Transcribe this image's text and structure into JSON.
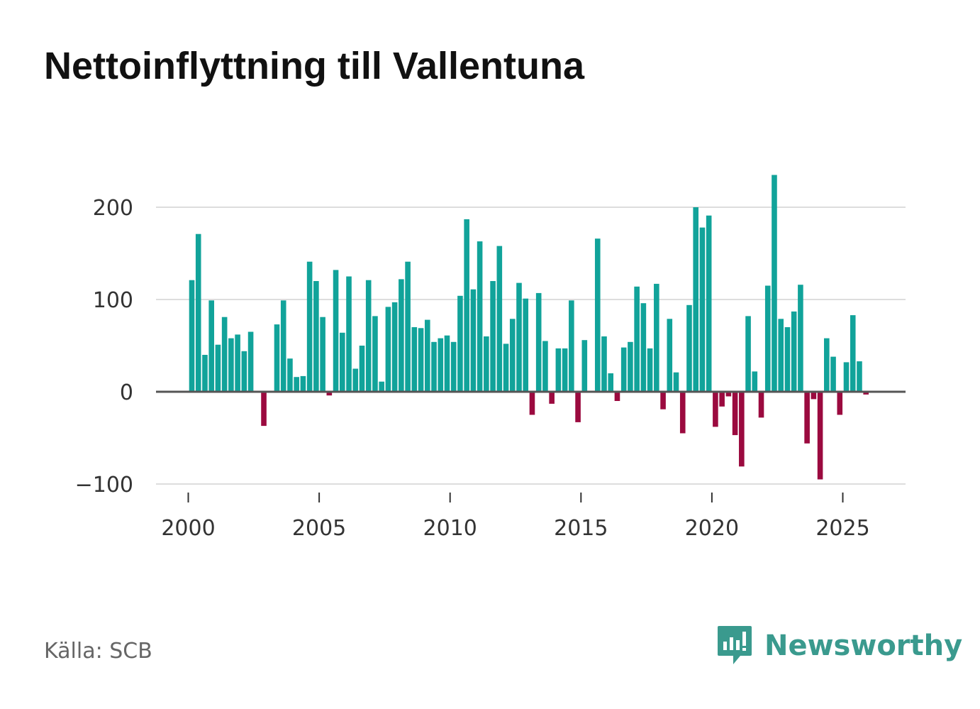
{
  "title": "Nettoinflyttning till Vallentuna",
  "source": "Källa: SCB",
  "brand": {
    "name": "Newsworthy",
    "icon": "newsworthy-logo-icon",
    "color": "#3a9a8e"
  },
  "colors": {
    "positive": "#11a39a",
    "negative": "#9b0a3f",
    "grid": "#dddddd",
    "zero": "#555555"
  },
  "chart_data": {
    "type": "bar",
    "title": "Nettoinflyttning till Vallentuna",
    "xlabel": "",
    "ylabel": "",
    "frequency": "quarterly",
    "start": "2000 Q1",
    "ylim": [
      -100,
      240
    ],
    "yticks": [
      -100,
      0,
      100,
      200
    ],
    "ytick_labels": [
      "−100",
      "0",
      "100",
      "200"
    ],
    "xticks": [
      2000,
      2005,
      2010,
      2015,
      2020,
      2025
    ],
    "xtick_labels": [
      "2000",
      "2005",
      "2010",
      "2015",
      "2020",
      "2025"
    ],
    "grid": true,
    "values": [
      121,
      171,
      40,
      99,
      51,
      81,
      58,
      62,
      44,
      65,
      0,
      -37,
      0,
      73,
      99,
      36,
      16,
      17,
      141,
      120,
      81,
      -4,
      132,
      64,
      125,
      25,
      50,
      121,
      82,
      11,
      92,
      97,
      122,
      141,
      70,
      69,
      78,
      54,
      58,
      61,
      54,
      104,
      187,
      111,
      163,
      60,
      120,
      158,
      52,
      79,
      118,
      101,
      -25,
      107,
      55,
      -13,
      47,
      47,
      99,
      -33,
      56,
      0,
      166,
      60,
      20,
      -10,
      48,
      54,
      114,
      96,
      47,
      117,
      -19,
      79,
      21,
      -45,
      94,
      200,
      178,
      191,
      -38,
      -16,
      -5,
      -47,
      -81,
      82,
      22,
      -28,
      115,
      235,
      79,
      70,
      87,
      116,
      -56,
      -8,
      -95,
      58,
      38,
      -25,
      32,
      83,
      33,
      -3
    ]
  }
}
